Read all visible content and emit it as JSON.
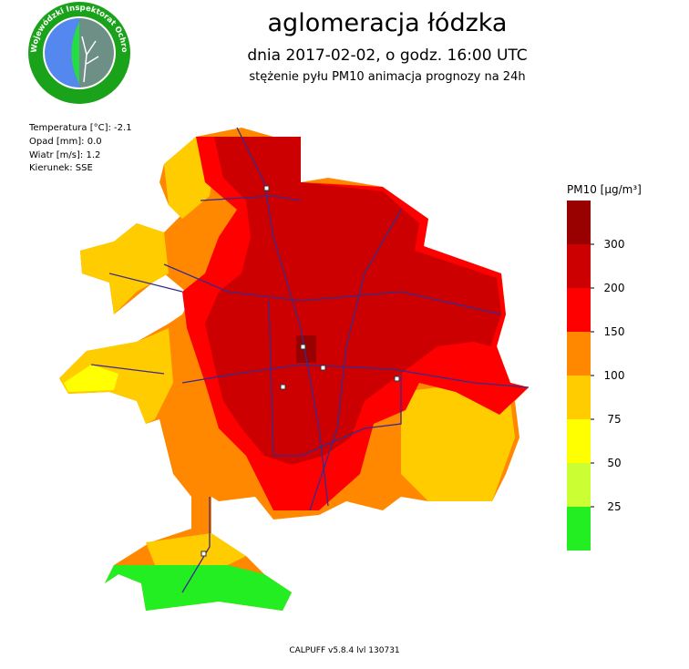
{
  "header": {
    "title": "aglomeracja łódzka",
    "subtitle": "dnia 2017-02-02, o godz. 16:00 UTC",
    "description": "stężenie pyłu PM10 animacja prognozy na 24h"
  },
  "logo": {
    "text": "Wojewódzki Inspektorat Ochrony Środowiska w Łodzi"
  },
  "weather": [
    "Temperatura [°C]: -2.1",
    "Opad [mm]: 0.0",
    "Wiatr [m/s]: 1.2",
    "Kierunek: SSE"
  ],
  "legend": {
    "title": "PM10 [µg/m³]",
    "ticks": [
      25,
      50,
      75,
      100,
      150,
      200,
      300
    ],
    "colors": [
      "#22ee22",
      "#ccff33",
      "#ffff00",
      "#ffcc00",
      "#ff8800",
      "#ff0000",
      "#cc0000",
      "#990000"
    ]
  },
  "footer": "CALPUFF v5.8.4 lvl 130731"
}
